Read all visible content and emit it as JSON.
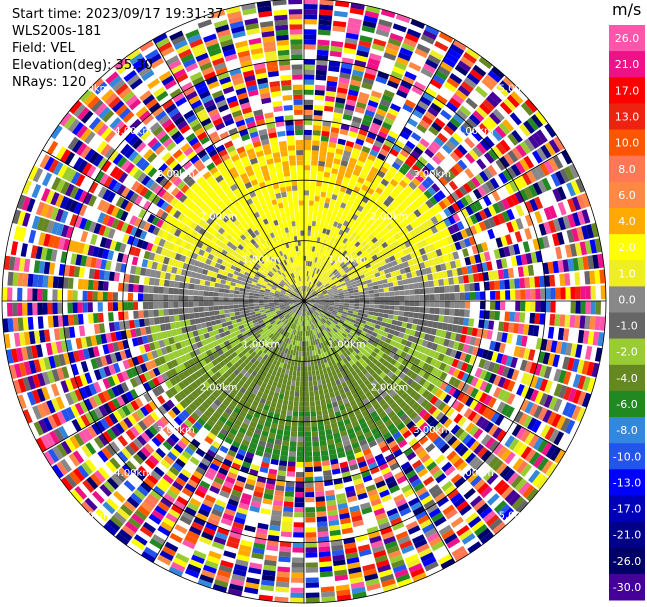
{
  "header": {
    "start_time": "Start time: 2023/09/17 19:31:37",
    "station": "WLS200s-181",
    "field": "Field: VEL",
    "elevation": "Elevation(deg): 35.30",
    "nrays": "NRays: 120"
  },
  "colorbar": {
    "unit": "m/s",
    "levels": [
      "26.0",
      "21.0",
      "17.0",
      "13.0",
      "10.0",
      "8.0",
      "6.0",
      "4.0",
      "2.0",
      "1.0",
      "0.0",
      "-1.0",
      "-2.0",
      "-4.0",
      "-6.0",
      "-8.0",
      "-10.0",
      "-13.0",
      "-17.0",
      "-21.0",
      "-26.0",
      "-30.0"
    ],
    "colors": [
      "#ff55aa",
      "#ee1188",
      "#ff0000",
      "#ee2211",
      "#ff5500",
      "#ff7755",
      "#ff8844",
      "#ffaa00",
      "#ffff00",
      "#eeee22",
      "#888888",
      "#666666",
      "#99cc33",
      "#668822",
      "#228822",
      "#3388dd",
      "#2255ee",
      "#0000ff",
      "#0000bb",
      "#000088",
      "#000066",
      "#440099"
    ]
  },
  "chart_data": {
    "type": "ppi-polar",
    "field": "VEL",
    "nrays": 120,
    "range_rings": [
      "1.00km",
      "2.00km",
      "3.00km",
      "4.00km",
      "5.00km"
    ],
    "max_range_km": 5.0,
    "spoke_count": 12,
    "legend_placement": "right"
  }
}
